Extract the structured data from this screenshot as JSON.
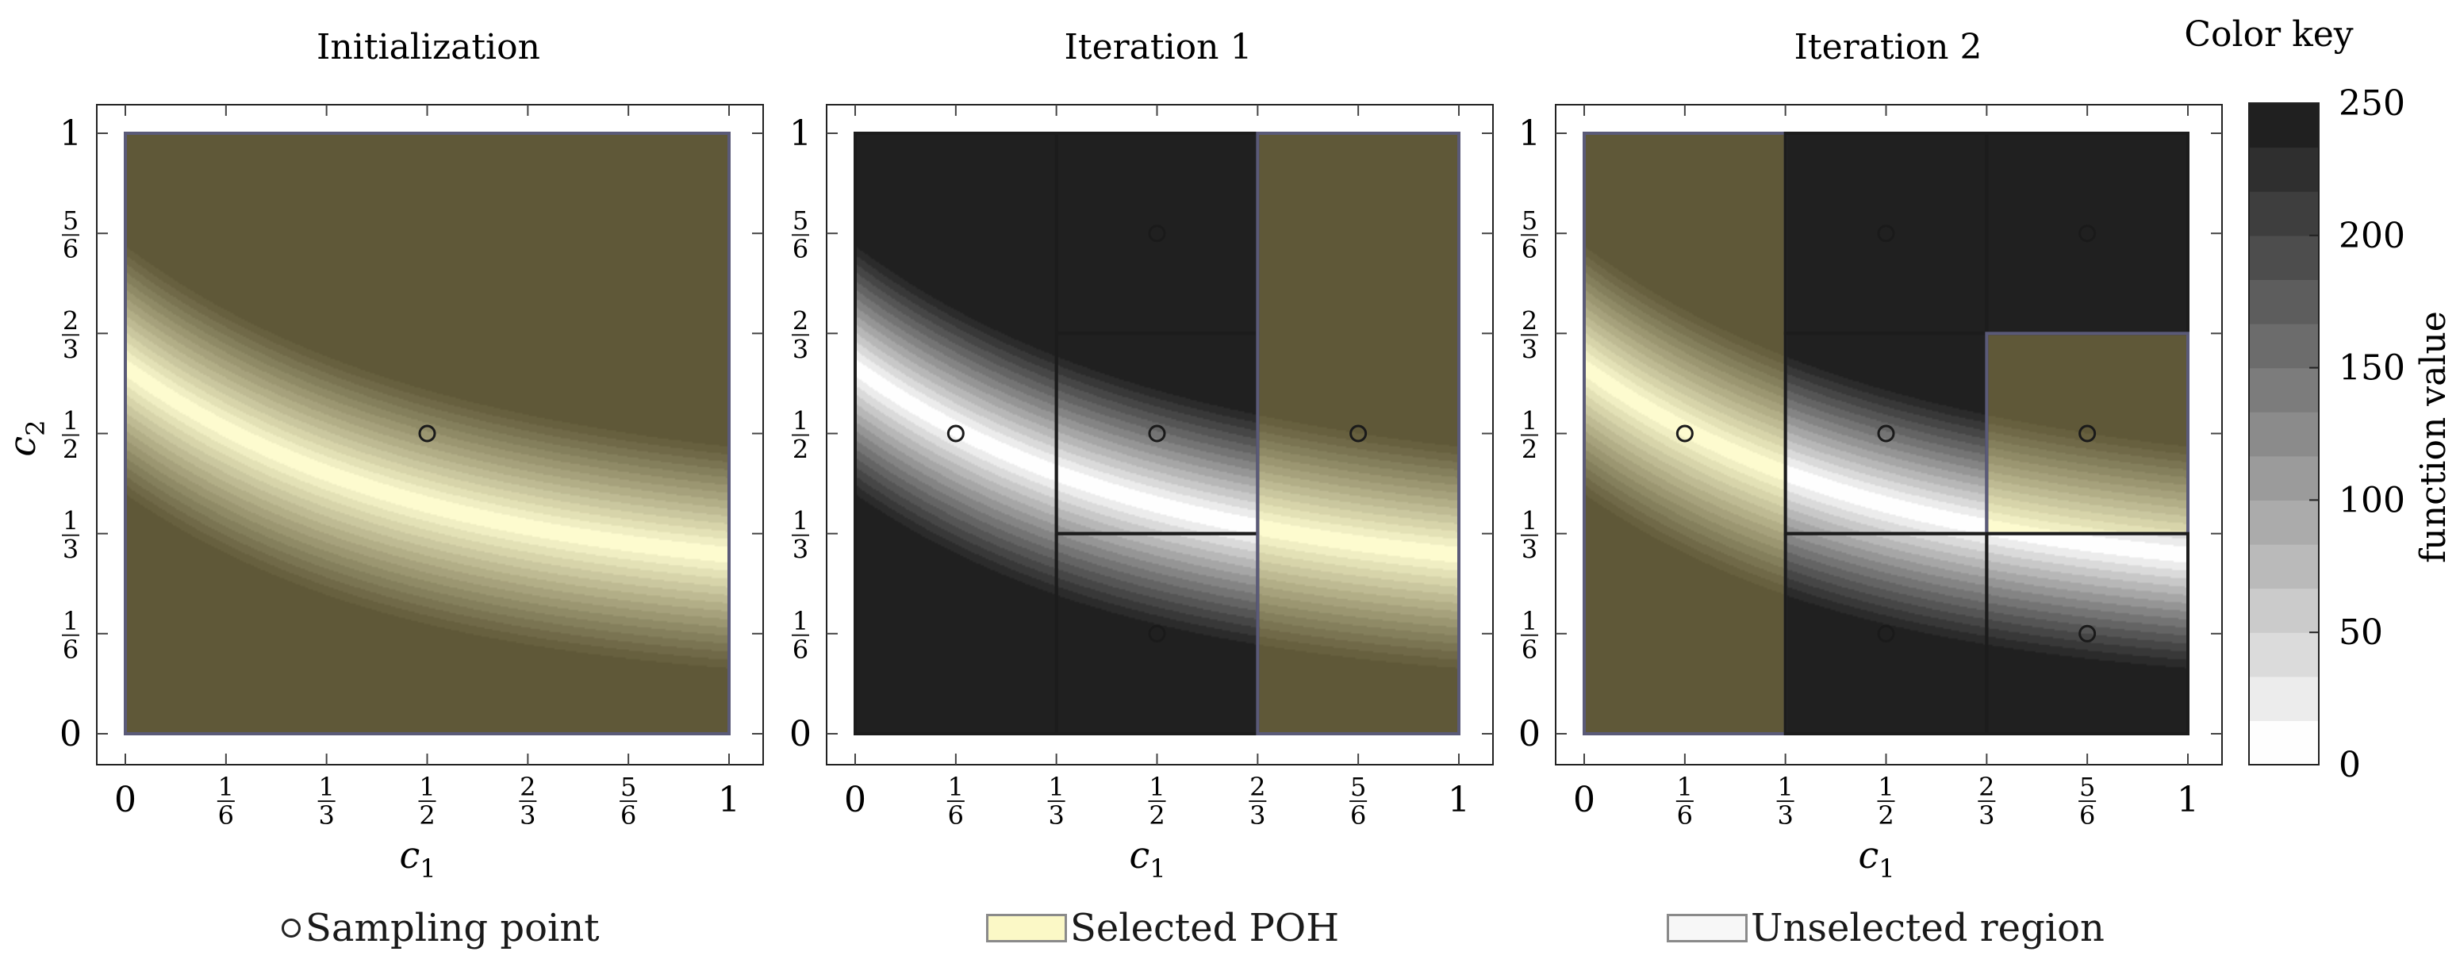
{
  "chart_data": [
    {
      "type": "contour",
      "title": "Initialization",
      "xlabel": "c1",
      "ylabel": "c2",
      "xlim": [
        0,
        1
      ],
      "ylim": [
        0,
        1
      ],
      "sampling_points": [
        {
          "x": 0.5,
          "y": 0.5
        }
      ],
      "regions": [
        {
          "x0": 0,
          "x1": 1,
          "y0": 0,
          "y1": 1,
          "selected": true
        }
      ]
    },
    {
      "type": "contour",
      "title": "Iteration 1",
      "xlabel": "c1",
      "ylabel": "",
      "xlim": [
        0,
        1
      ],
      "ylim": [
        0,
        1
      ],
      "sampling_points": [
        {
          "x": 0.1667,
          "y": 0.5
        },
        {
          "x": 0.5,
          "y": 0.8333
        },
        {
          "x": 0.5,
          "y": 0.5
        },
        {
          "x": 0.5,
          "y": 0.1667
        },
        {
          "x": 0.8333,
          "y": 0.5
        }
      ],
      "regions": [
        {
          "x0": 0,
          "x1": 0.3333,
          "y0": 0,
          "y1": 1,
          "selected": false
        },
        {
          "x0": 0.3333,
          "x1": 0.6667,
          "y0": 0.6667,
          "y1": 1,
          "selected": false
        },
        {
          "x0": 0.3333,
          "x1": 0.6667,
          "y0": 0.3333,
          "y1": 0.6667,
          "selected": false
        },
        {
          "x0": 0.3333,
          "x1": 0.6667,
          "y0": 0,
          "y1": 0.3333,
          "selected": false
        },
        {
          "x0": 0.6667,
          "x1": 1,
          "y0": 0,
          "y1": 1,
          "selected": true
        }
      ]
    },
    {
      "type": "contour",
      "title": "Iteration 2",
      "xlabel": "c1",
      "ylabel": "",
      "xlim": [
        0,
        1
      ],
      "ylim": [
        0,
        1
      ],
      "sampling_points": [
        {
          "x": 0.1667,
          "y": 0.5
        },
        {
          "x": 0.5,
          "y": 0.8333
        },
        {
          "x": 0.5,
          "y": 0.5
        },
        {
          "x": 0.5,
          "y": 0.1667
        },
        {
          "x": 0.8333,
          "y": 0.8333
        },
        {
          "x": 0.8333,
          "y": 0.5
        },
        {
          "x": 0.8333,
          "y": 0.1667
        }
      ],
      "regions": [
        {
          "x0": 0,
          "x1": 0.3333,
          "y0": 0,
          "y1": 1,
          "selected": true
        },
        {
          "x0": 0.3333,
          "x1": 0.6667,
          "y0": 0.6667,
          "y1": 1,
          "selected": false
        },
        {
          "x0": 0.3333,
          "x1": 0.6667,
          "y0": 0.3333,
          "y1": 0.6667,
          "selected": false
        },
        {
          "x0": 0.3333,
          "x1": 0.6667,
          "y0": 0,
          "y1": 0.3333,
          "selected": false
        },
        {
          "x0": 0.6667,
          "x1": 1,
          "y0": 0.6667,
          "y1": 1,
          "selected": false
        },
        {
          "x0": 0.6667,
          "x1": 1,
          "y0": 0.3333,
          "y1": 0.6667,
          "selected": true
        },
        {
          "x0": 0.6667,
          "x1": 1,
          "y0": 0,
          "y1": 0.3333,
          "selected": false
        }
      ]
    }
  ],
  "ticks": [
    {
      "v": 0,
      "label": "0"
    },
    {
      "v": 0.1667,
      "num": "1",
      "den": "6"
    },
    {
      "v": 0.3333,
      "num": "1",
      "den": "3"
    },
    {
      "v": 0.5,
      "num": "1",
      "den": "2"
    },
    {
      "v": 0.6667,
      "num": "2",
      "den": "3"
    },
    {
      "v": 0.8333,
      "num": "5",
      "den": "6"
    },
    {
      "v": 1,
      "label": "1"
    }
  ],
  "axis_labels": {
    "x": "c",
    "x_sub": "1",
    "y": "c",
    "y_sub": "2"
  },
  "color_key": {
    "title": "Color key",
    "label": "function value",
    "range": [
      0,
      250
    ],
    "ticks": [
      0,
      50,
      100,
      150,
      200,
      250
    ]
  },
  "legend": {
    "sampling_point": "Sampling point",
    "selected": "Selected POH",
    "unselected": "Unselected region"
  },
  "colors": {
    "selected_low": "#5f5838",
    "selected_high": "#fdfbcf",
    "unselected_low": "#202020",
    "unselected_high": "#fefefe",
    "frame": "#5a5a78"
  }
}
